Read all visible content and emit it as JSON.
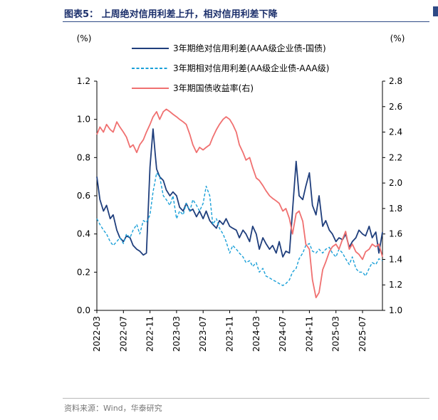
{
  "figure": {
    "title": "图表5： 上周绝对信用利差上升，相对信用利差下降",
    "source": "资料来源：Wind，华泰研究"
  },
  "chart_data": {
    "type": "line",
    "left_unit": "(%)",
    "right_unit": "(%)",
    "left_ylim": [
      0.0,
      1.2
    ],
    "left_ticks": [
      "0.0",
      "0.2",
      "0.4",
      "0.6",
      "0.8",
      "1.0",
      "1.2"
    ],
    "right_ylim": [
      1.0,
      2.8
    ],
    "right_ticks": [
      "1.0",
      "1.2",
      "1.4",
      "1.6",
      "1.8",
      "2.0",
      "2.2",
      "2.4",
      "2.6",
      "2.8"
    ],
    "xlim": [
      "2022-03",
      "2025-10"
    ],
    "x_ticks": [
      "2022-03",
      "2022-07",
      "2022-11",
      "2023-03",
      "2023-07",
      "2023-11",
      "2024-03",
      "2024-07",
      "2024-11",
      "2025-03",
      "2025-07"
    ],
    "legend_position": "top-center",
    "grid": false,
    "series": [
      {
        "name": "3年期绝对信用利差(AAA级企业债-国债)",
        "axis": "left",
        "color": "#1f3e7c",
        "style": "solid",
        "x": [
          "2022-03-01",
          "2022-03-15",
          "2022-04-01",
          "2022-04-15",
          "2022-05-01",
          "2022-05-15",
          "2022-06-01",
          "2022-06-15",
          "2022-07-01",
          "2022-07-15",
          "2022-08-01",
          "2022-08-15",
          "2022-09-01",
          "2022-09-15",
          "2022-10-01",
          "2022-10-15",
          "2022-11-01",
          "2022-11-15",
          "2022-11-25",
          "2022-12-01",
          "2022-12-15",
          "2023-01-01",
          "2023-01-15",
          "2023-02-01",
          "2023-02-15",
          "2023-03-01",
          "2023-03-15",
          "2023-04-01",
          "2023-04-15",
          "2023-05-01",
          "2023-05-15",
          "2023-06-01",
          "2023-06-15",
          "2023-07-01",
          "2023-07-15",
          "2023-08-01",
          "2023-08-15",
          "2023-09-01",
          "2023-09-15",
          "2023-10-01",
          "2023-10-15",
          "2023-11-01",
          "2023-11-15",
          "2023-12-01",
          "2023-12-15",
          "2024-01-01",
          "2024-01-15",
          "2024-02-01",
          "2024-02-15",
          "2024-03-01",
          "2024-03-15",
          "2024-04-01",
          "2024-04-15",
          "2024-05-01",
          "2024-05-15",
          "2024-06-01",
          "2024-06-15",
          "2024-07-01",
          "2024-07-15",
          "2024-08-01",
          "2024-08-15",
          "2024-09-01",
          "2024-09-15",
          "2024-10-01",
          "2024-10-15",
          "2024-11-01",
          "2024-11-15",
          "2024-12-01",
          "2024-12-15",
          "2025-01-01",
          "2025-01-15",
          "2025-02-01",
          "2025-02-15",
          "2025-03-01",
          "2025-03-15",
          "2025-04-01",
          "2025-04-15",
          "2025-05-01",
          "2025-05-15",
          "2025-06-01",
          "2025-06-15",
          "2025-07-01",
          "2025-07-15",
          "2025-08-01",
          "2025-08-15",
          "2025-09-01",
          "2025-09-15",
          "2025-10-01"
        ],
        "values": [
          0.7,
          0.58,
          0.52,
          0.55,
          0.48,
          0.5,
          0.42,
          0.38,
          0.36,
          0.39,
          0.38,
          0.34,
          0.32,
          0.31,
          0.29,
          0.3,
          0.75,
          0.95,
          0.82,
          0.74,
          0.7,
          0.68,
          0.63,
          0.6,
          0.62,
          0.6,
          0.54,
          0.52,
          0.56,
          0.52,
          0.53,
          0.49,
          0.52,
          0.48,
          0.52,
          0.47,
          0.45,
          0.43,
          0.47,
          0.45,
          0.48,
          0.44,
          0.43,
          0.42,
          0.38,
          0.42,
          0.4,
          0.36,
          0.44,
          0.4,
          0.32,
          0.38,
          0.35,
          0.32,
          0.34,
          0.3,
          0.36,
          0.28,
          0.31,
          0.3,
          0.52,
          0.78,
          0.6,
          0.58,
          0.65,
          0.72,
          0.55,
          0.5,
          0.6,
          0.44,
          0.47,
          0.42,
          0.4,
          0.36,
          0.38,
          0.37,
          0.4,
          0.33,
          0.36,
          0.38,
          0.42,
          0.4,
          0.39,
          0.44,
          0.38,
          0.41,
          0.3,
          0.41
        ]
      },
      {
        "name": "3年期相对信用利差(AA级企业债-AAA级)",
        "axis": "left",
        "color": "#1aa0d8",
        "style": "dashed",
        "x": [
          "2022-03-01",
          "2022-03-15",
          "2022-04-01",
          "2022-04-15",
          "2022-05-01",
          "2022-05-15",
          "2022-06-01",
          "2022-06-15",
          "2022-07-01",
          "2022-07-15",
          "2022-08-01",
          "2022-08-15",
          "2022-09-01",
          "2022-09-15",
          "2022-10-01",
          "2022-10-15",
          "2022-11-01",
          "2022-11-15",
          "2022-12-01",
          "2022-12-15",
          "2023-01-01",
          "2023-01-15",
          "2023-02-01",
          "2023-02-15",
          "2023-03-01",
          "2023-03-15",
          "2023-04-01",
          "2023-04-15",
          "2023-05-01",
          "2023-05-15",
          "2023-06-01",
          "2023-06-15",
          "2023-07-01",
          "2023-07-15",
          "2023-08-01",
          "2023-08-15",
          "2023-09-01",
          "2023-09-15",
          "2023-10-01",
          "2023-10-15",
          "2023-11-01",
          "2023-11-15",
          "2023-12-01",
          "2023-12-15",
          "2024-01-01",
          "2024-01-15",
          "2024-02-01",
          "2024-02-15",
          "2024-03-01",
          "2024-03-15",
          "2024-04-01",
          "2024-04-15",
          "2024-05-01",
          "2024-05-15",
          "2024-06-01",
          "2024-06-15",
          "2024-07-01",
          "2024-07-15",
          "2024-08-01",
          "2024-08-15",
          "2024-09-01",
          "2024-09-15",
          "2024-10-01",
          "2024-10-15",
          "2024-11-01",
          "2024-11-15",
          "2024-12-01",
          "2024-12-15",
          "2025-01-01",
          "2025-01-15",
          "2025-02-01",
          "2025-02-15",
          "2025-03-01",
          "2025-03-15",
          "2025-04-01",
          "2025-04-15",
          "2025-05-01",
          "2025-05-15",
          "2025-06-01",
          "2025-06-15",
          "2025-07-01",
          "2025-07-15",
          "2025-08-01",
          "2025-08-15",
          "2025-09-01",
          "2025-09-15",
          "2025-10-01"
        ],
        "values": [
          0.48,
          0.45,
          0.42,
          0.4,
          0.36,
          0.34,
          0.36,
          0.38,
          0.35,
          0.4,
          0.38,
          0.42,
          0.45,
          0.4,
          0.47,
          0.46,
          0.5,
          0.62,
          0.72,
          0.7,
          0.6,
          0.58,
          0.55,
          0.6,
          0.48,
          0.52,
          0.5,
          0.56,
          0.52,
          0.58,
          0.55,
          0.52,
          0.56,
          0.65,
          0.6,
          0.45,
          0.48,
          0.43,
          0.4,
          0.36,
          0.3,
          0.34,
          0.32,
          0.3,
          0.28,
          0.25,
          0.26,
          0.23,
          0.25,
          0.2,
          0.22,
          0.18,
          0.17,
          0.16,
          0.15,
          0.14,
          0.13,
          0.14,
          0.16,
          0.2,
          0.22,
          0.27,
          0.3,
          0.34,
          0.35,
          0.31,
          0.3,
          0.32,
          0.3,
          0.32,
          0.33,
          0.3,
          0.28,
          0.32,
          0.3,
          0.27,
          0.24,
          0.28,
          0.22,
          0.2,
          0.2,
          0.18,
          0.22,
          0.25,
          0.24,
          0.27,
          0.26
        ]
      },
      {
        "name": "3年期国债收益率(右)",
        "axis": "right",
        "color": "#f07070",
        "style": "solid",
        "x": [
          "2022-03-01",
          "2022-03-15",
          "2022-04-01",
          "2022-04-15",
          "2022-05-01",
          "2022-05-15",
          "2022-06-01",
          "2022-06-15",
          "2022-07-01",
          "2022-07-15",
          "2022-08-01",
          "2022-08-15",
          "2022-09-01",
          "2022-09-15",
          "2022-10-01",
          "2022-10-15",
          "2022-11-01",
          "2022-11-15",
          "2022-12-01",
          "2022-12-15",
          "2023-01-01",
          "2023-01-15",
          "2023-02-01",
          "2023-02-15",
          "2023-03-01",
          "2023-03-15",
          "2023-04-01",
          "2023-04-15",
          "2023-05-01",
          "2023-05-15",
          "2023-06-01",
          "2023-06-15",
          "2023-07-01",
          "2023-07-15",
          "2023-08-01",
          "2023-08-15",
          "2023-09-01",
          "2023-09-15",
          "2023-10-01",
          "2023-10-15",
          "2023-11-01",
          "2023-11-15",
          "2023-12-01",
          "2023-12-15",
          "2024-01-01",
          "2024-01-15",
          "2024-02-01",
          "2024-02-15",
          "2024-03-01",
          "2024-03-15",
          "2024-04-01",
          "2024-04-15",
          "2024-05-01",
          "2024-05-15",
          "2024-06-01",
          "2024-06-15",
          "2024-07-01",
          "2024-07-15",
          "2024-08-01",
          "2024-08-15",
          "2024-09-01",
          "2024-09-15",
          "2024-10-01",
          "2024-10-15",
          "2024-11-01",
          "2024-11-15",
          "2024-12-01",
          "2024-12-15",
          "2025-01-01",
          "2025-01-15",
          "2025-02-01",
          "2025-02-15",
          "2025-03-01",
          "2025-03-15",
          "2025-04-01",
          "2025-04-15",
          "2025-05-01",
          "2025-05-15",
          "2025-06-01",
          "2025-06-15",
          "2025-07-01",
          "2025-07-15",
          "2025-08-01",
          "2025-08-15",
          "2025-09-01",
          "2025-09-15",
          "2025-10-01"
        ],
        "values": [
          2.38,
          2.44,
          2.4,
          2.46,
          2.42,
          2.4,
          2.48,
          2.44,
          2.4,
          2.36,
          2.28,
          2.3,
          2.24,
          2.3,
          2.34,
          2.4,
          2.46,
          2.52,
          2.56,
          2.5,
          2.56,
          2.58,
          2.56,
          2.54,
          2.52,
          2.5,
          2.48,
          2.46,
          2.38,
          2.3,
          2.24,
          2.28,
          2.26,
          2.28,
          2.3,
          2.36,
          2.42,
          2.46,
          2.5,
          2.52,
          2.5,
          2.46,
          2.4,
          2.3,
          2.24,
          2.18,
          2.2,
          2.12,
          2.04,
          2.02,
          1.98,
          1.94,
          1.9,
          1.88,
          1.86,
          1.84,
          1.78,
          1.8,
          1.72,
          1.6,
          1.76,
          1.78,
          1.7,
          1.52,
          1.48,
          1.24,
          1.1,
          1.14,
          1.32,
          1.38,
          1.46,
          1.5,
          1.52,
          1.48,
          1.56,
          1.62,
          1.48,
          1.52,
          1.46,
          1.44,
          1.4,
          1.46,
          1.48,
          1.52,
          1.5,
          1.52,
          1.42
        ]
      }
    ]
  }
}
